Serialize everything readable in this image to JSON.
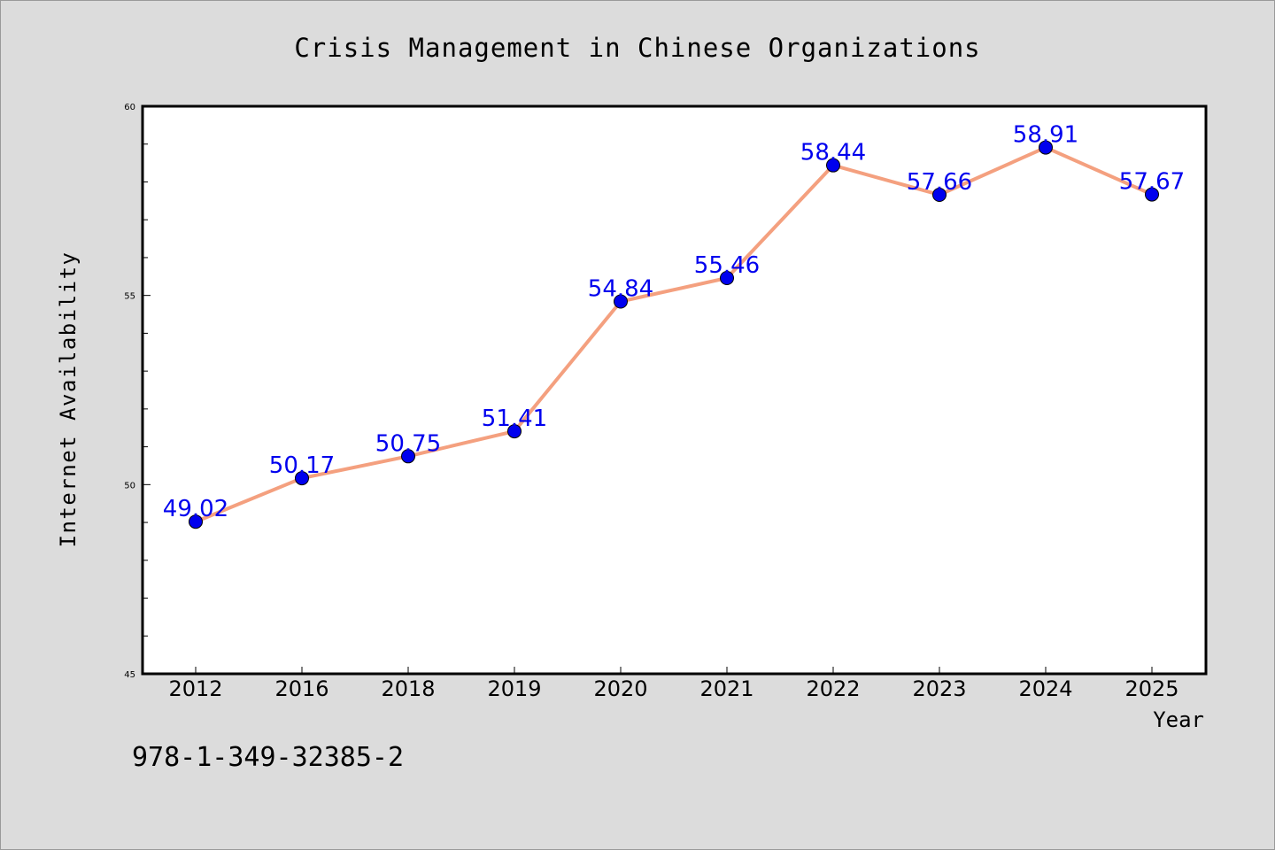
{
  "chart_data": {
    "type": "line",
    "title": "Crisis Management in Chinese Organizations",
    "xlabel": "Year",
    "ylabel": "Internet Availability",
    "categories": [
      "2012",
      "2016",
      "2018",
      "2019",
      "2020",
      "2021",
      "2022",
      "2023",
      "2024",
      "2025"
    ],
    "series": [
      {
        "values": [
          49.02,
          50.17,
          50.75,
          51.41,
          54.84,
          55.46,
          58.44,
          57.66,
          58.91,
          57.67
        ],
        "data_labels": [
          "49.02",
          "50.17",
          "50.75",
          "51.41",
          "54.84",
          "55.46",
          "58.44",
          "57.66",
          "58.91",
          "57.67"
        ]
      }
    ],
    "ylim": [
      45,
      60
    ],
    "y_ticks": [
      "45",
      "50",
      "55",
      "60"
    ],
    "grid": false,
    "line_color": "#f4a07f",
    "marker_color": "#0000ee",
    "label_color": "#0000ee"
  },
  "footer_text": "978-1-349-32385-2"
}
